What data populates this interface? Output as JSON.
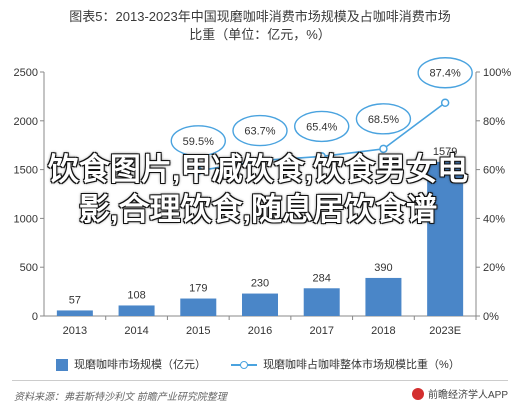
{
  "title": {
    "prefix": "图表5：",
    "line1": "2013-2023年中国现磨咖啡消费市场规模及占咖啡消费市场",
    "line2": "比重（单位：亿元，%）"
  },
  "overlay_text": "饮食图片,甲减饮食,饮食男女电影,合理饮食,随息居饮食谱",
  "chart_data": {
    "type": "bar",
    "categories": [
      "2013",
      "2014",
      "2015",
      "2016",
      "2017",
      "2018",
      "2023E"
    ],
    "series": [
      {
        "name": "现磨咖啡市场规模（亿元）",
        "type": "bar",
        "axis": "left",
        "values": [
          57,
          108,
          179,
          230,
          284,
          390,
          1579
        ],
        "labels": [
          "57",
          "108",
          "179",
          "230",
          "284",
          "390",
          "1579"
        ]
      },
      {
        "name": "现磨咖啡占咖啡整体市场规模比重（%）",
        "type": "line",
        "axis": "right",
        "values": [
          null,
          null,
          59.5,
          63.7,
          65.4,
          68.5,
          87.4
        ],
        "labels": [
          "",
          "",
          "59.5%",
          "63.7%",
          "65.4%",
          "68.5%",
          "87.4%"
        ]
      }
    ],
    "y_left": {
      "ticks": [
        "0",
        "500",
        "1000",
        "1500",
        "2000",
        "2500"
      ],
      "range": [
        0,
        2500
      ]
    },
    "y_right": {
      "ticks": [
        "0%",
        "20%",
        "40%",
        "60%",
        "80%",
        "100%"
      ],
      "range": [
        0,
        100
      ]
    },
    "bar_color": "#4a86c8",
    "line_color": "#4aa3df",
    "legend_position": "bottom",
    "grid": false
  },
  "legend": {
    "bar_label": "现磨咖啡市场规模（亿元）",
    "line_label": "现磨咖啡占咖啡整体市场规模比重（%）"
  },
  "source": "资料来源：弗若斯特沙利文 前瞻产业研究院整理",
  "brand": "前瞻经济学人APP"
}
